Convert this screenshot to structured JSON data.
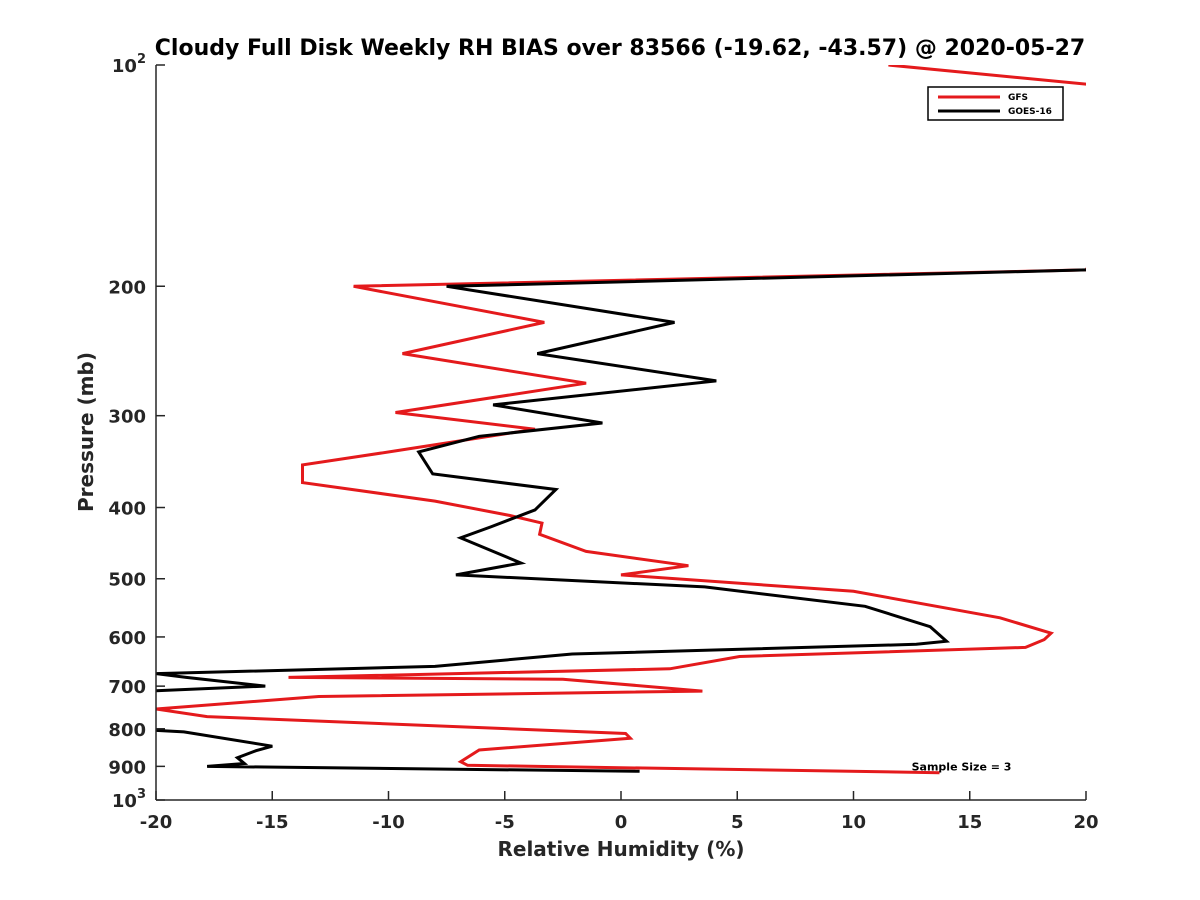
{
  "chart_data": {
    "type": "line",
    "title": "Cloudy Full Disk Weekly RH BIAS over 83566 (-19.62, -43.57) @ 2020-05-27",
    "xlabel": "Relative Humidity (%)",
    "ylabel": "Pressure (mb)",
    "xlim": [
      -20,
      20
    ],
    "ylim": [
      100,
      1000
    ],
    "y_scale": "log",
    "y_reversed": true,
    "grid": false,
    "legend_position": "top-right",
    "x_ticks": [
      "-20",
      "-15",
      "-10",
      "-5",
      "0",
      "5",
      "10",
      "15",
      "20"
    ],
    "y_ticks": [
      {
        "value": 100,
        "base": "10",
        "exp": "2"
      },
      {
        "value": 200,
        "label": "200"
      },
      {
        "value": 300,
        "label": "300"
      },
      {
        "value": 400,
        "label": "400"
      },
      {
        "value": 500,
        "label": "500"
      },
      {
        "value": 600,
        "label": "600"
      },
      {
        "value": 700,
        "label": "700"
      },
      {
        "value": 800,
        "label": "800"
      },
      {
        "value": 900,
        "label": "900"
      },
      {
        "value": 1000,
        "base": "10",
        "exp": "3"
      }
    ],
    "series": [
      {
        "name": "GFS",
        "color": "#e41a1c",
        "points": [
          [
            11.5,
            100
          ],
          [
            25,
            110
          ],
          [
            20,
            190
          ],
          [
            -11.5,
            200
          ],
          [
            -3.3,
            224
          ],
          [
            -9.4,
            247
          ],
          [
            -1.5,
            271
          ],
          [
            -9.7,
            297
          ],
          [
            -3.7,
            313
          ],
          [
            -9.7,
            335
          ],
          [
            -13.7,
            350
          ],
          [
            -13.7,
            370
          ],
          [
            -8,
            392
          ],
          [
            -4.8,
            410
          ],
          [
            -3.4,
            420
          ],
          [
            -3.5,
            435
          ],
          [
            -1.5,
            459
          ],
          [
            2.9,
            480
          ],
          [
            0,
            494
          ],
          [
            10,
            520
          ],
          [
            16.3,
            565
          ],
          [
            18.5,
            593
          ],
          [
            18.2,
            605
          ],
          [
            17.4,
            620
          ],
          [
            5.1,
            638
          ],
          [
            2.1,
            663
          ],
          [
            -14.3,
            681
          ],
          [
            -2.5,
            685
          ],
          [
            3.5,
            711
          ],
          [
            -13,
            723
          ],
          [
            -20,
            752
          ],
          [
            -17.8,
            770
          ],
          [
            0.2,
            812
          ],
          [
            0.4,
            824
          ],
          [
            -6.1,
            855
          ],
          [
            -6.9,
            887
          ],
          [
            -6.6,
            897
          ],
          [
            13.7,
            918
          ]
        ]
      },
      {
        "name": "GOES-16",
        "color": "#000000",
        "points": [
          [
            20,
            190
          ],
          [
            -7.5,
            200
          ],
          [
            2.3,
            224
          ],
          [
            -3.6,
            247
          ],
          [
            4.1,
            269
          ],
          [
            -5.5,
            290
          ],
          [
            -0.8,
            307
          ],
          [
            -6.1,
            320
          ],
          [
            -8.7,
            336
          ],
          [
            -8.1,
            360
          ],
          [
            -2.8,
            378
          ],
          [
            -3.7,
            403
          ],
          [
            -5.6,
            425
          ],
          [
            -6.9,
            440
          ],
          [
            -4.3,
            476
          ],
          [
            -7.1,
            494
          ],
          [
            3.6,
            513
          ],
          [
            10.5,
            545
          ],
          [
            13.3,
            581
          ],
          [
            14,
            608
          ],
          [
            12.7,
            614
          ],
          [
            -2.1,
            633
          ],
          [
            -8,
            658
          ],
          [
            -20,
            673
          ],
          [
            -18.7,
            681
          ],
          [
            -15.3,
            700
          ],
          [
            -20,
            710
          ],
          [
            -21,
            714
          ],
          [
            -20,
            804
          ],
          [
            -18.8,
            808
          ],
          [
            -15,
            845
          ],
          [
            -15.7,
            857
          ],
          [
            -16.5,
            876
          ],
          [
            -16.2,
            892
          ],
          [
            -17.8,
            900
          ],
          [
            0.8,
            914
          ]
        ]
      }
    ],
    "annotations": [
      {
        "text": "Sample Size = 3",
        "x": 12.5,
        "y": 900
      }
    ]
  }
}
